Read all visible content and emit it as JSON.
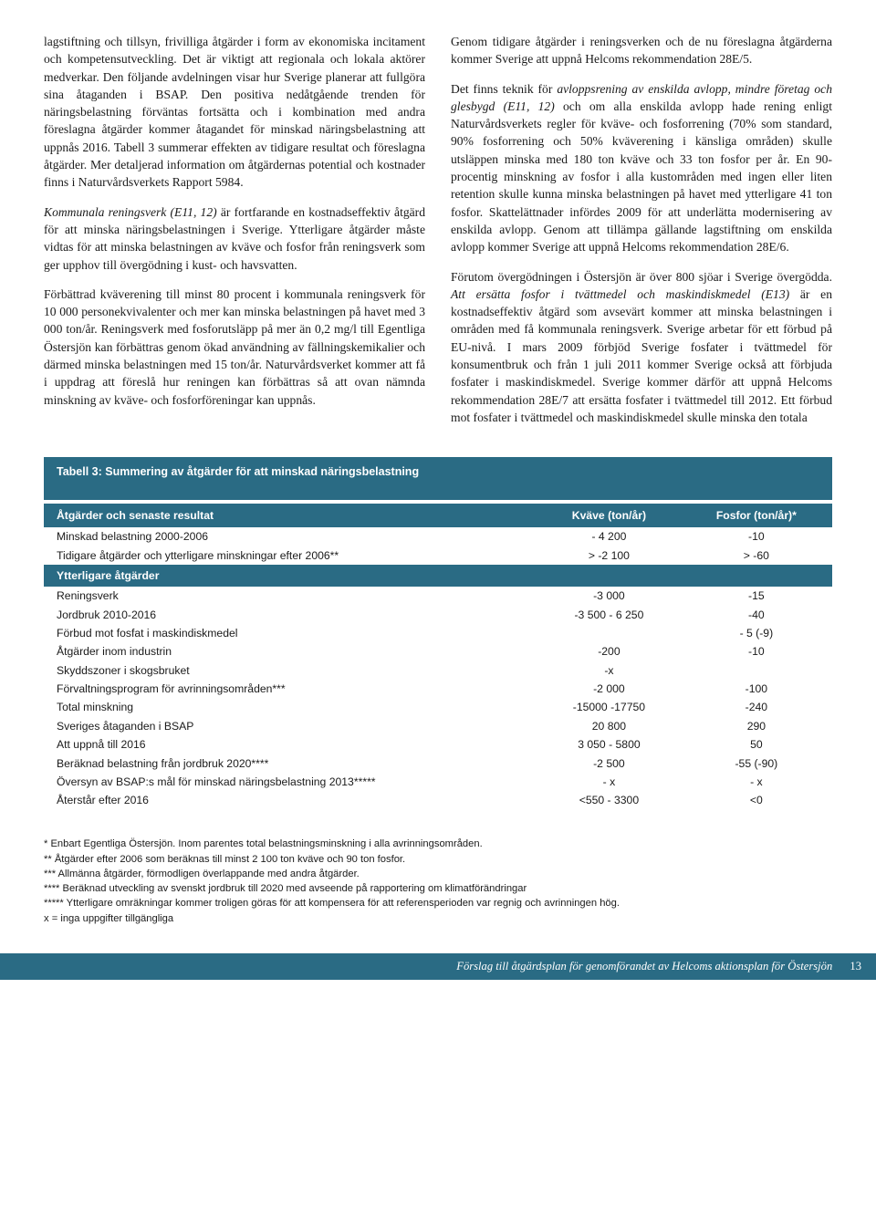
{
  "left_column": {
    "p1": "lagstiftning och tillsyn, frivilliga åtgärder i form av ekonomiska incitament och kompetensutveckling. Det är viktigt att regionala och lokala aktörer medverkar. Den följande avdelningen visar hur Sverige planerar att fullgöra sina åtaganden i BSAP. Den positiva nedåtgående trenden för näringsbelastning förväntas fortsätta och i kombination med andra föreslagna åtgärder kommer åtagandet för minskad näringsbelastning att uppnås 2016. Tabell 3 summerar effekten av tidigare resultat och föreslagna åtgärder. Mer detaljerad information om åtgärdernas potential och kostnader finns i Naturvårdsverkets Rapport 5984.",
    "p2_em": "Kommunala reningsverk (E11, 12)",
    "p2_rest": " är fortfarande en kostnadseffektiv åtgärd för att minska näringsbelastningen i Sverige. Ytterligare åtgärder måste vidtas för att minska belastningen av kväve och fosfor från reningsverk som ger upphov till övergödning i kust- och havsvatten.",
    "p3": "Förbättrad kväverening till minst 80 procent i kommunala reningsverk för 10 000 personekvivalenter och mer kan minska belastningen på havet med 3 000 ton/år. Reningsverk med fosforutsläpp på mer än 0,2 mg/l till Egentliga Östersjön kan förbättras genom ökad användning av fällningskemikalier och därmed minska belastningen med 15 ton/år. Naturvårdsverket kommer att få i uppdrag att föreslå hur reningen kan förbättras så att ovan nämnda minskning av kväve- och fosforföreningar kan uppnås."
  },
  "right_column": {
    "p1": "Genom tidigare åtgärder i reningsverken och de nu föreslagna åtgärderna kommer Sverige att uppnå Helcoms rekommendation 28E/5.",
    "p2a": "Det finns teknik för ",
    "p2_em": "avloppsrening av enskilda avlopp, mindre företag och glesbygd (E11, 12)",
    "p2b": " och om alla enskilda avlopp hade rening enligt Naturvårdsverkets regler för kväve- och fosforrening (70% som standard, 90% fosforrening och 50% kväverening i känsliga områden) skulle utsläppen minska med 180 ton kväve och 33 ton fosfor per år. En 90-procentig minskning av fosfor i alla kustområden med ingen eller liten retention skulle kunna minska belastningen på havet med ytterligare 41 ton fosfor. Skattelättnader infördes 2009 för att underlätta modernisering av enskilda avlopp. Genom att tillämpa gällande lagstiftning om enskilda avlopp kommer Sverige att uppnå Helcoms rekommendation 28E/6.",
    "p3a": "Förutom övergödningen i Östersjön är över 800 sjöar i Sverige övergödda. ",
    "p3_em": "Att ersätta fosfor i tvättmedel och maskindiskmedel (E13)",
    "p3b": " är en kostnadseffektiv åtgärd som avsevärt kommer att minska belastningen i områden med få kommunala reningsverk. Sverige arbetar för ett förbud på EU-nivå. I mars 2009 förbjöd Sverige fosfater i tvättmedel för konsumentbruk och från 1 juli 2011 kommer Sverige också att förbjuda fosfater i maskindiskmedel. Sverige kommer därför att uppnå Helcoms rekommendation 28E/7 att ersätta fosfater i tvättmedel till 2012. Ett förbud mot fosfater i tvättmedel och maskindiskmedel skulle minska den totala"
  },
  "table": {
    "title": "Tabell 3: Summering av åtgärder för att minskad näringsbelastning",
    "headers": {
      "c1": "Åtgärder och senaste resultat",
      "c2": "Kväve (ton/år)",
      "c3": "Fosfor (ton/år)*"
    },
    "rows_top": [
      {
        "c1": "Minskad belastning 2000-2006",
        "c2": "- 4 200",
        "c3": "-10"
      },
      {
        "c1": "Tidigare åtgärder och ytterligare minskningar efter 2006**",
        "c2": "> -2 100",
        "c3": "> -60"
      }
    ],
    "subheader": "Ytterligare åtgärder",
    "rows_bottom": [
      {
        "c1": "Reningsverk",
        "c2": "-3 000",
        "c3": "-15"
      },
      {
        "c1": "Jordbruk 2010-2016",
        "c2": "-3 500 - 6 250",
        "c3": "-40"
      },
      {
        "c1": "Förbud mot fosfat i maskindiskmedel",
        "c2": "",
        "c3": "- 5 (-9)"
      },
      {
        "c1": "Åtgärder inom industrin",
        "c2": "-200",
        "c3": "-10"
      },
      {
        "c1": "Skyddszoner i skogsbruket",
        "c2": "-x",
        "c3": ""
      },
      {
        "c1": "Förvaltningsprogram för avrinningsområden***",
        "c2": "-2 000",
        "c3": "-100"
      },
      {
        "c1": "Total minskning",
        "c2": "-15000 -17750",
        "c3": "-240"
      },
      {
        "c1": "Sveriges åtaganden i BSAP",
        "c2": "20 800",
        "c3": "290"
      },
      {
        "c1": "Att uppnå till 2016",
        "c2": "3 050 - 5800",
        "c3": "50"
      },
      {
        "c1": "Beräknad belastning från jordbruk 2020****",
        "c2": "-2 500",
        "c3": "-55 (-90)"
      },
      {
        "c1": "Översyn av BSAP:s mål för minskad näringsbelastning 2013*****",
        "c2": "- x",
        "c3": "- x"
      },
      {
        "c1": "Återstår efter 2016",
        "c2": "<550 -  3300",
        "c3": "<0"
      }
    ]
  },
  "footnotes": {
    "f1": "* Enbart Egentliga Östersjön. Inom parentes total belastningsminskning i alla avrinningsområden.",
    "f2": "** Åtgärder efter 2006 som beräknas till minst 2 100 ton kväve och 90 ton fosfor.",
    "f3": "*** Allmänna åtgärder, förmodligen överlappande med andra åtgärder.",
    "f4": "**** Beräknad utveckling av svenskt jordbruk till 2020 med avseende på rapportering om klimatförändringar",
    "f5": "***** Ytterligare omräkningar kommer troligen göras för att kompensera för att referensperioden var regnig och avrinningen hög.",
    "f6": "x = inga uppgifter tillgängliga"
  },
  "footer": {
    "text": "Förslag till åtgärdsplan för genomförandet av Helcoms aktionsplan för Östersjön",
    "page": "13"
  },
  "colors": {
    "header_bg": "#2a6b84",
    "header_fg": "#ffffff",
    "body_text": "#1a1a1a",
    "page_bg": "#ffffff"
  }
}
